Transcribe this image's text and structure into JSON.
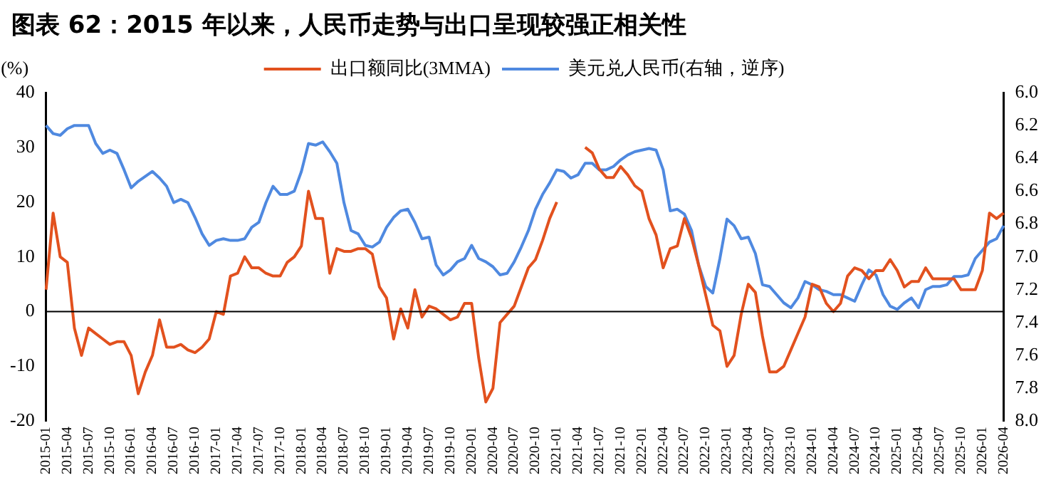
{
  "chart_data": {
    "type": "line",
    "title": "图表 62：2015 年以来，人民币走势与出口呈现较强正相关性",
    "ylabel": "(%)",
    "legend": "top",
    "marker": "none",
    "line_style": "solid",
    "categories": [
      "2015-01",
      null,
      null,
      "2015-04",
      null,
      null,
      "2015-07",
      null,
      null,
      "2015-10",
      null,
      null,
      "2016-01",
      null,
      null,
      "2016-04",
      null,
      null,
      "2016-07",
      null,
      null,
      "2016-10",
      null,
      null,
      "2017-01",
      null,
      null,
      "2017-04",
      null,
      null,
      "2017-07",
      null,
      null,
      "2017-10",
      null,
      null,
      "2018-01",
      null,
      null,
      "2018-04",
      null,
      null,
      "2018-07",
      null,
      null,
      "2018-10",
      null,
      null,
      "2019-01",
      null,
      null,
      "2019-04",
      null,
      null,
      "2019-07",
      null,
      null,
      "2019-10",
      null,
      null,
      "2020-01",
      null,
      null,
      "2020-04",
      null,
      null,
      "2020-07",
      null,
      null,
      "2020-10",
      null,
      null,
      "2021-01",
      null,
      null,
      "2021-04",
      null,
      null,
      "2021-07",
      null,
      null,
      "2021-10",
      null,
      null,
      "2022-01",
      null,
      null,
      "2022-04",
      null,
      null,
      "2022-07",
      null,
      null,
      "2022-10",
      null,
      null,
      "2023-01",
      null,
      null,
      "2023-04",
      null,
      null,
      "2023-07",
      null,
      null,
      "2023-10",
      null,
      null,
      "2024-01",
      null,
      null,
      "2024-04",
      null,
      null,
      "2024-07",
      null,
      null,
      "2024-10",
      null,
      null,
      "2025-01",
      null,
      null,
      "2025-04",
      null,
      null,
      "2025-07",
      null,
      null,
      "2025-10",
      null,
      null,
      "2026-01",
      null,
      null,
      "2026-04"
    ],
    "series": [
      {
        "name": "出口额同比(3MMA)",
        "color": "#e2511e",
        "values": [
          4,
          18,
          10,
          9,
          -3,
          -8,
          -3,
          -4,
          -5,
          -6,
          -5.5,
          -5.5,
          -8,
          -15,
          -11,
          -8,
          -1.5,
          -6.5,
          -6.5,
          -6,
          -7,
          -7.5,
          -6.5,
          -5,
          0,
          -0.5,
          6.5,
          7,
          10,
          8,
          8,
          7,
          6.5,
          6.5,
          9,
          10,
          12,
          22,
          17,
          17,
          7,
          11.5,
          11,
          11,
          11.5,
          11.5,
          10.5,
          4.5,
          2.5,
          -5,
          0.5,
          -3,
          4,
          -1,
          1,
          0.5,
          -0.5,
          -1.5,
          -1,
          1.5,
          1.5,
          -8.5,
          -16.5,
          -14,
          -2,
          -0.5,
          1,
          4.5,
          8,
          9.5,
          13,
          17,
          20,
          null,
          null,
          null,
          30,
          29,
          26,
          24.5,
          24.5,
          26.5,
          25,
          23,
          22,
          17,
          14,
          8,
          11.5,
          12,
          17,
          13.5,
          8.5,
          3,
          -2.5,
          -3.5,
          -10,
          -8,
          -0.5,
          5,
          3.5,
          -4.5,
          -11,
          -11,
          -10,
          -7,
          -4,
          -1,
          5,
          4.5,
          1.5,
          0,
          1.5,
          6.5,
          8,
          7.5,
          6,
          7.5,
          7.5,
          9.5,
          7.5,
          4.5,
          5.5,
          5.5,
          8,
          6,
          6,
          6,
          6,
          4,
          4,
          4,
          7.5,
          18,
          17,
          18
        ]
      },
      {
        "name": "美元兑人民币(右轴，逆序)",
        "color": "#4f89e0",
        "axis": "y2",
        "values": [
          6.2,
          6.25,
          6.26,
          6.22,
          6.2,
          6.2,
          6.2,
          6.31,
          6.37,
          6.35,
          6.37,
          6.47,
          6.58,
          6.54,
          6.51,
          6.48,
          6.52,
          6.57,
          6.67,
          6.65,
          6.67,
          6.76,
          6.86,
          6.93,
          6.9,
          6.89,
          6.9,
          6.9,
          6.89,
          6.82,
          6.79,
          6.67,
          6.57,
          6.62,
          6.62,
          6.6,
          6.48,
          6.31,
          6.32,
          6.3,
          6.36,
          6.43,
          6.67,
          6.84,
          6.86,
          6.93,
          6.94,
          6.91,
          6.82,
          6.76,
          6.72,
          6.71,
          6.79,
          6.89,
          6.88,
          7.05,
          7.11,
          7.08,
          7.03,
          7.01,
          6.93,
          7.01,
          7.03,
          7.06,
          7.11,
          7.1,
          7.03,
          6.94,
          6.84,
          6.71,
          6.62,
          6.55,
          6.47,
          6.48,
          6.52,
          6.5,
          6.43,
          6.43,
          6.47,
          6.47,
          6.45,
          6.41,
          6.38,
          6.36,
          6.35,
          6.34,
          6.35,
          6.47,
          6.72,
          6.71,
          6.74,
          6.84,
          7.05,
          7.18,
          7.22,
          7.01,
          6.77,
          6.81,
          6.89,
          6.88,
          6.98,
          7.17,
          7.18,
          7.23,
          7.28,
          7.31,
          7.25,
          7.15,
          7.17,
          7.2,
          7.21,
          7.23,
          7.23,
          7.25,
          7.27,
          7.17,
          7.08,
          7.11,
          7.23,
          7.3,
          7.32,
          7.28,
          7.25,
          7.31,
          7.2,
          7.18,
          7.18,
          7.17,
          7.12,
          7.12,
          7.11,
          7.01,
          6.96,
          6.91,
          6.89,
          6.81
        ]
      }
    ],
    "ylim": [
      -20,
      40
    ],
    "yticks": [
      -20,
      -10,
      0,
      10,
      20,
      30,
      40
    ],
    "y2lim": [
      8,
      6
    ],
    "y2ticks": [
      {
        "value": 6,
        "label": "6.0"
      },
      6.2,
      6.4,
      6.6,
      6.8,
      {
        "value": 7,
        "label": "7.0"
      },
      7.2,
      7.4,
      7.6,
      7.8,
      {
        "value": 8,
        "label": "8.0"
      }
    ],
    "ref_lines": [
      {
        "axis": "y",
        "value": 0,
        "color": "#000000"
      }
    ]
  }
}
